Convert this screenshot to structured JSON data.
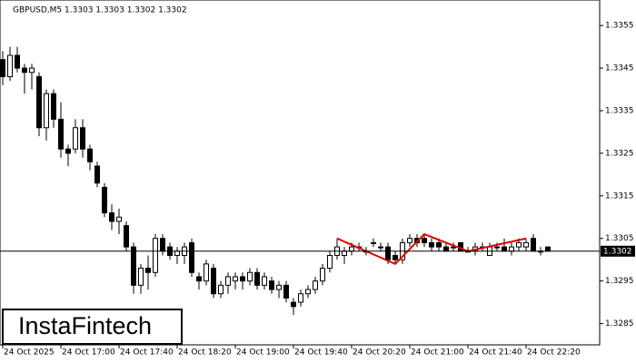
{
  "chart_data": {
    "type": "candlestick",
    "title": "GBPUSD,M5  1.3303 1.3303 1.3302 1.3302",
    "ylim": [
      1.328,
      1.3361
    ],
    "yticks": [
      1.3285,
      1.3295,
      1.3305,
      1.3315,
      1.3325,
      1.3335,
      1.3345,
      1.3355
    ],
    "last_price": 1.3302,
    "up_color": "#ffffff",
    "down_color": "#000000",
    "categories": [
      "24 Oct 2025",
      null,
      null,
      null,
      null,
      null,
      null,
      null,
      "24 Oct 17:00",
      null,
      null,
      null,
      null,
      null,
      null,
      null,
      "24 Oct 17:40",
      null,
      null,
      null,
      null,
      null,
      null,
      null,
      "24 Oct 18:20",
      null,
      null,
      null,
      null,
      null,
      null,
      null,
      "24 Oct 19:00",
      null,
      null,
      null,
      null,
      null,
      null,
      null,
      "24 Oct 19:40",
      null,
      null,
      null,
      null,
      null,
      null,
      null,
      "24 Oct 20:20",
      null,
      null,
      null,
      null,
      null,
      null,
      null,
      "24 Oct 21:00",
      null,
      null,
      null,
      null,
      null,
      null,
      null,
      "24 Oct 21:40",
      null,
      null,
      null,
      null,
      null,
      null,
      null,
      "24 Oct 22:20",
      null,
      null,
      null
    ],
    "candles": [
      [
        1.3347,
        1.3349,
        1.3341,
        1.3343
      ],
      [
        1.3343,
        1.335,
        1.3342,
        1.3348
      ],
      [
        1.3348,
        1.335,
        1.3344,
        1.3345
      ],
      [
        1.3345,
        1.3346,
        1.3339,
        1.3344
      ],
      [
        1.3344,
        1.3346,
        1.334,
        1.3345
      ],
      [
        1.3343,
        1.3344,
        1.3329,
        1.3331
      ],
      [
        1.3331,
        1.334,
        1.3328,
        1.3339
      ],
      [
        1.3339,
        1.334,
        1.3331,
        1.3333
      ],
      [
        1.3333,
        1.3337,
        1.3324,
        1.3326
      ],
      [
        1.3326,
        1.3327,
        1.3322,
        1.3325
      ],
      [
        1.3326,
        1.3333,
        1.3325,
        1.3331
      ],
      [
        1.3331,
        1.3333,
        1.3324,
        1.3326
      ],
      [
        1.3326,
        1.3327,
        1.3321,
        1.3323
      ],
      [
        1.3322,
        1.3323,
        1.3317,
        1.3318
      ],
      [
        1.3317,
        1.3318,
        1.331,
        1.3311
      ],
      [
        1.3311,
        1.3313,
        1.3307,
        1.3309
      ],
      [
        1.3309,
        1.3312,
        1.3306,
        1.331
      ],
      [
        1.3308,
        1.3309,
        1.3302,
        1.3303
      ],
      [
        1.3303,
        1.3304,
        1.3292,
        1.3294
      ],
      [
        1.3294,
        1.3299,
        1.3292,
        1.3298
      ],
      [
        1.3298,
        1.3301,
        1.3293,
        1.3297
      ],
      [
        1.3297,
        1.3306,
        1.3296,
        1.3305
      ],
      [
        1.3305,
        1.3306,
        1.3301,
        1.3302
      ],
      [
        1.3303,
        1.3304,
        1.33,
        1.3301
      ],
      [
        1.3301,
        1.3303,
        1.3299,
        1.3302
      ],
      [
        1.3301,
        1.3304,
        1.3299,
        1.3303
      ],
      [
        1.3304,
        1.3305,
        1.3296,
        1.3297
      ],
      [
        1.3296,
        1.3297,
        1.3293,
        1.3295
      ],
      [
        1.3295,
        1.33,
        1.3294,
        1.3299
      ],
      [
        1.3298,
        1.3299,
        1.3291,
        1.3292
      ],
      [
        1.3292,
        1.3295,
        1.3291,
        1.3294
      ],
      [
        1.3294,
        1.3297,
        1.3292,
        1.3296
      ],
      [
        1.3295,
        1.3297,
        1.3293,
        1.3296
      ],
      [
        1.3296,
        1.3297,
        1.3293,
        1.3295
      ],
      [
        1.3295,
        1.3298,
        1.3294,
        1.3297
      ],
      [
        1.3297,
        1.3298,
        1.3293,
        1.3294
      ],
      [
        1.3294,
        1.3297,
        1.3293,
        1.3296
      ],
      [
        1.3295,
        1.3296,
        1.3292,
        1.3293
      ],
      [
        1.3293,
        1.3295,
        1.3291,
        1.3294
      ],
      [
        1.3294,
        1.3295,
        1.329,
        1.3291
      ],
      [
        1.329,
        1.3291,
        1.3287,
        1.3289
      ],
      [
        1.329,
        1.3293,
        1.3289,
        1.3292
      ],
      [
        1.3292,
        1.3294,
        1.3291,
        1.3293
      ],
      [
        1.3293,
        1.3296,
        1.3292,
        1.3295
      ],
      [
        1.3295,
        1.3299,
        1.3294,
        1.3298
      ],
      [
        1.3298,
        1.3302,
        1.3297,
        1.3301
      ],
      [
        1.3301,
        1.3305,
        1.33,
        1.3303
      ],
      [
        1.3301,
        1.3303,
        1.3299,
        1.3302
      ],
      [
        1.3302,
        1.3304,
        1.3301,
        1.3303
      ],
      [
        1.3303,
        1.3304,
        1.3302,
        1.3303
      ],
      [
        1.3302,
        1.3303,
        1.3301,
        1.3302
      ],
      [
        1.3304,
        1.3305,
        1.3303,
        1.3304
      ],
      [
        1.3303,
        1.3304,
        1.3302,
        1.3303
      ],
      [
        1.3303,
        1.3304,
        1.3299,
        1.33
      ],
      [
        1.3301,
        1.3302,
        1.3299,
        1.33
      ],
      [
        1.33,
        1.3305,
        1.3299,
        1.3304
      ],
      [
        1.3304,
        1.3306,
        1.3303,
        1.3305
      ],
      [
        1.3305,
        1.3306,
        1.3303,
        1.3304
      ],
      [
        1.3305,
        1.3306,
        1.3303,
        1.3304
      ],
      [
        1.3304,
        1.3305,
        1.3302,
        1.3303
      ],
      [
        1.3304,
        1.3305,
        1.3302,
        1.3303
      ],
      [
        1.3303,
        1.3304,
        1.3302,
        1.3302
      ],
      [
        1.3303,
        1.3304,
        1.3302,
        1.3303
      ],
      [
        1.3304,
        1.3304,
        1.3302,
        1.3302
      ],
      [
        1.3302,
        1.3303,
        1.3302,
        1.3302
      ],
      [
        1.3302,
        1.3304,
        1.3301,
        1.3303
      ],
      [
        1.3303,
        1.3304,
        1.3302,
        1.3303
      ],
      [
        1.3301,
        1.3304,
        1.3301,
        1.3303
      ],
      [
        1.3303,
        1.3304,
        1.3302,
        1.3303
      ],
      [
        1.3303,
        1.3305,
        1.3302,
        1.3302
      ],
      [
        1.3302,
        1.3304,
        1.3301,
        1.3303
      ],
      [
        1.3303,
        1.3305,
        1.3302,
        1.3304
      ],
      [
        1.3303,
        1.3305,
        1.3302,
        1.3304
      ],
      [
        1.3305,
        1.3306,
        1.3302,
        1.3302
      ],
      [
        1.3302,
        1.3303,
        1.3301,
        1.3302
      ],
      [
        1.3303,
        1.3303,
        1.3302,
        1.3302
      ]
    ],
    "pattern": {
      "color": "#e00000",
      "x": [
        46,
        54,
        58,
        64,
        72
      ],
      "values": [
        1.3305,
        1.3299,
        1.3306,
        1.3302,
        1.3305
      ]
    },
    "logo": "InstaFintech"
  }
}
